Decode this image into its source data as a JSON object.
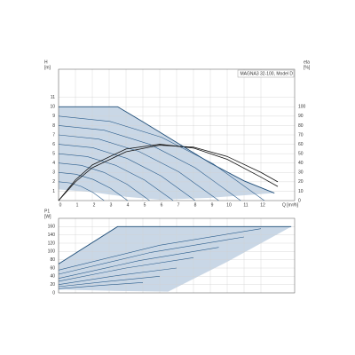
{
  "chart_data": [
    {
      "type": "line",
      "title": "MAGNA3 32-100, Model D",
      "ylabel": [
        "H",
        "[m]"
      ],
      "y2label": [
        "eta",
        "[%]"
      ],
      "xlabel": "Q [m³/h]",
      "xlim": [
        0,
        14
      ],
      "xticks": [
        0,
        1,
        2,
        3,
        4,
        5,
        6,
        7,
        8,
        9,
        10,
        11,
        12
      ],
      "ylim": [
        0,
        14
      ],
      "yticks": [
        1,
        2,
        3,
        4,
        5,
        6,
        7,
        8,
        9,
        10,
        11
      ],
      "y2lim": [
        0,
        140
      ],
      "y2ticks": [
        0,
        10,
        20,
        30,
        40,
        50,
        60,
        70,
        80,
        90,
        100
      ],
      "grid": true,
      "fill_between": {
        "color": "#c9d7e6",
        "line_color": "#1f4e79",
        "x_upper": [
          0,
          3.5,
          5,
          7,
          9,
          11,
          12.8
        ],
        "upper": [
          10,
          10,
          8.4,
          6.2,
          4,
          2.1,
          0.8
        ],
        "x_lower": [
          0,
          2,
          4,
          6,
          9,
          12.8
        ],
        "lower": [
          1.2,
          0.9,
          0.4,
          0.1,
          0.3,
          0.8
        ]
      },
      "series": [
        {
          "color": "#2b5d8c",
          "x": [
            0,
            3.05,
            6.1,
            9.15,
            12.2
          ],
          "values": [
            9,
            8.44,
            6.75,
            3.94,
            0
          ]
        },
        {
          "color": "#2b5d8c",
          "x": [
            0,
            2.7,
            5.4,
            8.1,
            10.8
          ],
          "values": [
            8,
            7.5,
            6,
            3.5,
            0
          ]
        },
        {
          "color": "#2b5d8c",
          "x": [
            0,
            2.38,
            4.75,
            7.13,
            9.5
          ],
          "values": [
            7,
            6.56,
            5.25,
            3.06,
            0
          ]
        },
        {
          "color": "#2b5d8c",
          "x": [
            0,
            2.03,
            4.05,
            6.08,
            8.1
          ],
          "values": [
            6,
            5.63,
            4.5,
            2.63,
            0
          ]
        },
        {
          "color": "#2b5d8c",
          "x": [
            0,
            1.7,
            3.4,
            5.1,
            6.8
          ],
          "values": [
            5,
            4.69,
            3.75,
            2.19,
            0
          ]
        },
        {
          "color": "#2b5d8c",
          "x": [
            0,
            1.35,
            2.7,
            4.05,
            5.4
          ],
          "values": [
            4,
            3.75,
            3,
            1.75,
            0
          ]
        },
        {
          "color": "#2b5d8c",
          "x": [
            0,
            1.03,
            2.05,
            3.08,
            4.1
          ],
          "values": [
            3,
            2.81,
            2.25,
            1.31,
            0
          ]
        },
        {
          "color": "#2b5d8c",
          "x": [
            0,
            0.68,
            1.35,
            2.03,
            2.7
          ],
          "values": [
            2,
            1.88,
            1.5,
            0.88,
            0
          ]
        },
        {
          "color": "#111111",
          "axis": "y2",
          "x": [
            0,
            1,
            2,
            4,
            6,
            8,
            10,
            12,
            13
          ],
          "values": [
            0,
            22,
            38,
            55,
            60,
            56,
            44,
            25,
            15
          ]
        },
        {
          "color": "#111111",
          "axis": "y2",
          "x": [
            0,
            1,
            2,
            4,
            6,
            8,
            10,
            12,
            13
          ],
          "values": [
            0,
            20,
            35,
            52,
            59,
            57,
            47,
            30,
            20
          ]
        }
      ]
    },
    {
      "type": "line",
      "ylabel": [
        "P1",
        "[W]"
      ],
      "xlim": [
        0,
        14
      ],
      "ylim": [
        0,
        180
      ],
      "yticks": [
        0,
        20,
        40,
        60,
        80,
        100,
        120,
        140,
        160
      ],
      "grid": true,
      "fill_between": {
        "color": "#c9d7e6",
        "line_color": "#1f4e79",
        "x_upper": [
          0,
          3.5,
          13.8
        ],
        "upper": [
          70,
          160,
          160
        ],
        "x_lower": [
          0,
          3,
          6.5,
          10,
          13.8
        ],
        "lower": [
          8,
          5,
          3,
          75,
          160
        ]
      },
      "series": [
        {
          "color": "#2b5d8c",
          "x": [
            0,
            6,
            12
          ],
          "values": [
            55,
            115,
            155
          ]
        },
        {
          "color": "#2b5d8c",
          "x": [
            0,
            5.5,
            11
          ],
          "values": [
            45,
            98,
            135
          ]
        },
        {
          "color": "#2b5d8c",
          "x": [
            0,
            4.8,
            9.5
          ],
          "values": [
            35,
            78,
            110
          ]
        },
        {
          "color": "#2b5d8c",
          "x": [
            0,
            4,
            8
          ],
          "values": [
            28,
            60,
            85
          ]
        },
        {
          "color": "#2b5d8c",
          "x": [
            0,
            3.5,
            7
          ],
          "values": [
            20,
            42,
            60
          ]
        },
        {
          "color": "#2b5d8c",
          "x": [
            0,
            3,
            6
          ],
          "values": [
            15,
            28,
            40
          ]
        },
        {
          "color": "#2b5d8c",
          "x": [
            0,
            2.5,
            5
          ],
          "values": [
            10,
            18,
            25
          ]
        }
      ]
    }
  ]
}
